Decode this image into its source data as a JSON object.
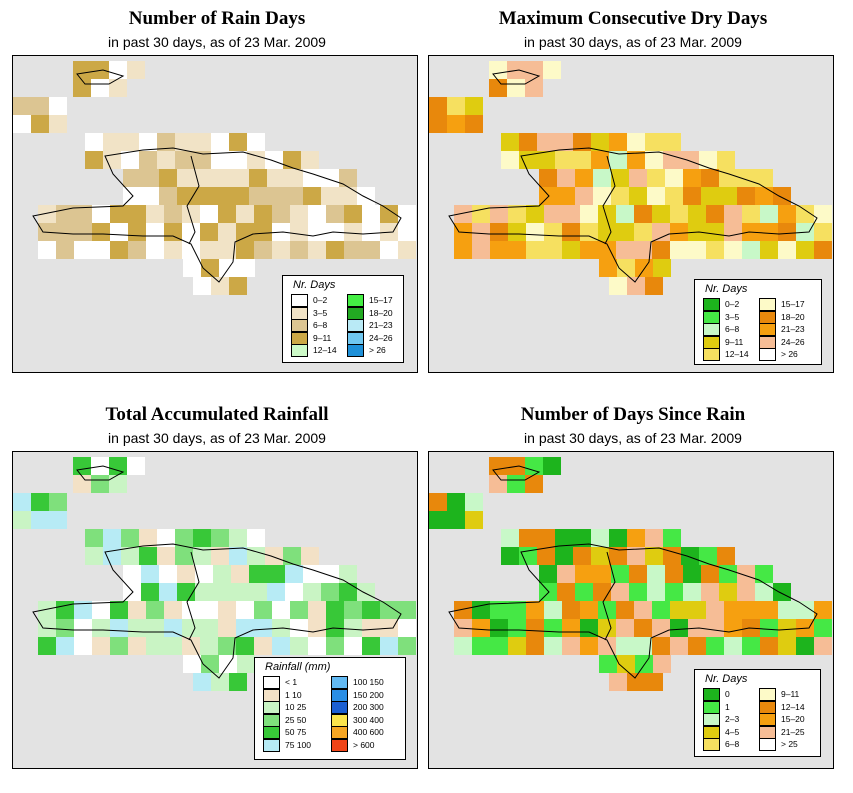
{
  "panels": [
    {
      "id": "rain-days",
      "title": "Number of Rain Days",
      "subtitle": "in past 30 days, as of  23 Mar. 2009",
      "legend": {
        "title": "Nr. Days",
        "items": [
          {
            "label": "0–2",
            "color": "#ffffff"
          },
          {
            "label": "3–5",
            "color": "#f1e3c6"
          },
          {
            "label": "6–8",
            "color": "#dcc592"
          },
          {
            "label": "9–11",
            "color": "#cca846"
          },
          {
            "label": "12–14",
            "color": "#cdfac8"
          },
          {
            "label": "15–17",
            "color": "#44ee44"
          },
          {
            "label": "18–20",
            "color": "#22aa22"
          },
          {
            "label": "21–23",
            "color": "#b9eaf6"
          },
          {
            "label": "24–26",
            "color": "#6fc7f0"
          },
          {
            "label": "> 26",
            "color": "#1e90d8"
          }
        ]
      },
      "palette": [
        "#ffffff",
        "#f1e3c6",
        "#dcc592",
        "#cca846"
      ]
    },
    {
      "id": "max-dry-days",
      "title": "Maximum Consecutive Dry Days",
      "subtitle": "in past 30 days, as of  23 Mar. 2009",
      "legend": {
        "title": "Nr. Days",
        "items": [
          {
            "label": "0–2",
            "color": "#1db41d"
          },
          {
            "label": "3–5",
            "color": "#45e845"
          },
          {
            "label": "6–8",
            "color": "#c8f8c8"
          },
          {
            "label": "9–11",
            "color": "#dfcc10"
          },
          {
            "label": "12–14",
            "color": "#f6e060"
          },
          {
            "label": "15–17",
            "color": "#fdfac8"
          },
          {
            "label": "18–20",
            "color": "#e8880c"
          },
          {
            "label": "21–23",
            "color": "#f6a010"
          },
          {
            "label": "24–26",
            "color": "#f6bd96"
          },
          {
            "label": "> 26",
            "color": "#ffffff"
          }
        ]
      },
      "palette": [
        "#fdfac8",
        "#e8880c",
        "#f6a010",
        "#f6e060",
        "#dfcc10",
        "#f6bd96",
        "#c8f8c8"
      ]
    },
    {
      "id": "total-rainfall",
      "title": "Total Accumulated Rainfall",
      "subtitle": "in past 30 days, as of  23 Mar. 2009",
      "legend": {
        "title": "Rainfall (mm)",
        "items": [
          {
            "label": "< 1",
            "color": "#ffffff"
          },
          {
            "label": "1    10",
            "color": "#f3e1c6"
          },
          {
            "label": "10    25",
            "color": "#c9f4c4"
          },
          {
            "label": "25    50",
            "color": "#7fe07c"
          },
          {
            "label": "50    75",
            "color": "#38c838"
          },
          {
            "label": "75   100",
            "color": "#b7ebf5"
          },
          {
            "label": "100  150",
            "color": "#62b9f2"
          },
          {
            "label": "150  200",
            "color": "#2a8ee5"
          },
          {
            "label": "200  300",
            "color": "#1c5fd2"
          },
          {
            "label": "300  400",
            "color": "#fbe44c"
          },
          {
            "label": "400  600",
            "color": "#f5a623"
          },
          {
            "label": "> 600",
            "color": "#f04418"
          }
        ]
      },
      "palette": [
        "#7fe07c",
        "#c9f4c4",
        "#38c838",
        "#f3e1c6",
        "#ffffff",
        "#b7ebf5"
      ]
    },
    {
      "id": "days-since-rain",
      "title": "Number of Days Since Rain",
      "subtitle": "in past 30 days, as of  23 Mar. 2009",
      "legend": {
        "title": "Nr. Days",
        "items": [
          {
            "label": "0",
            "color": "#1db41d"
          },
          {
            "label": "1",
            "color": "#45e845"
          },
          {
            "label": "2–3",
            "color": "#c8f8c8"
          },
          {
            "label": "4–5",
            "color": "#dfcc10"
          },
          {
            "label": "6–8",
            "color": "#f6e060"
          },
          {
            "label": "9–11",
            "color": "#fdfac8"
          },
          {
            "label": "12–14",
            "color": "#e8880c"
          },
          {
            "label": "15–20",
            "color": "#f6a010"
          },
          {
            "label": "21–25",
            "color": "#f6bd96"
          },
          {
            "label": "> 25",
            "color": "#ffffff"
          }
        ]
      },
      "palette": [
        "#45e845",
        "#f6a010",
        "#1db41d",
        "#c8f8c8",
        "#e8880c",
        "#dfcc10",
        "#f6bd96"
      ]
    }
  ]
}
